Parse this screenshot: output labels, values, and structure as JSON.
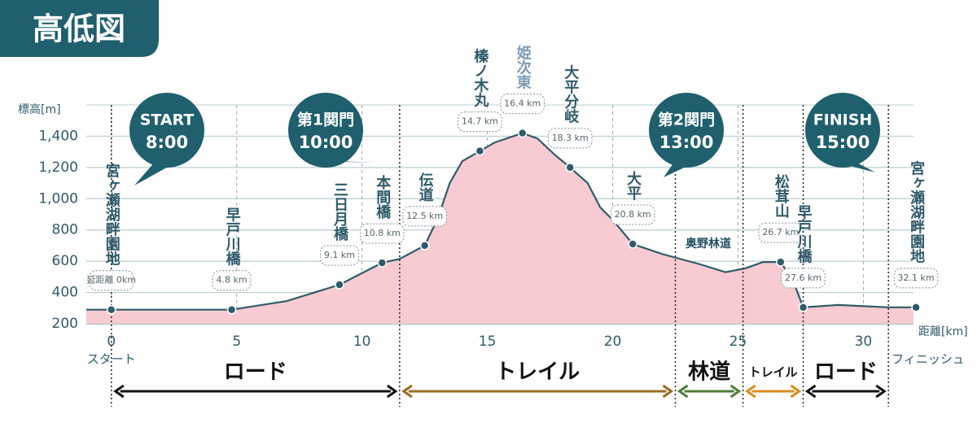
{
  "title": "高低図",
  "chart_data": {
    "type": "area",
    "y_label": "標高[m]",
    "x_label": "距離[km]",
    "x": [
      -1,
      0,
      4.8,
      7,
      9.1,
      10.8,
      11.5,
      12.5,
      13,
      13.5,
      14,
      14.7,
      15.3,
      16.4,
      17,
      17.7,
      18.3,
      19,
      19.5,
      20,
      20.8,
      22,
      23.5,
      24.5,
      25.3,
      26,
      26.7,
      27.2,
      27.6,
      29,
      31,
      32.1,
      32
    ],
    "values": [
      290,
      290,
      290,
      345,
      450,
      590,
      615,
      700,
      865,
      1100,
      1240,
      1305,
      1360,
      1420,
      1385,
      1280,
      1200,
      1100,
      945,
      865,
      710,
      645,
      580,
      530,
      555,
      595,
      595,
      475,
      305,
      320,
      305,
      305,
      305
    ],
    "color": "#f7cbd1",
    "line_color": "#2f5b6a",
    "xlim": [
      -1,
      32
    ],
    "ylim": [
      200,
      1600
    ],
    "xticks": [
      0,
      5,
      10,
      15,
      20,
      25,
      30
    ],
    "yticks": [
      200,
      400,
      600,
      800,
      {
        "value": 1000,
        "label": "1,000"
      },
      {
        "value": 1200,
        "label": "1,200"
      },
      {
        "value": 1400,
        "label": "1,400"
      }
    ],
    "grid": true,
    "stations": [
      {
        "name": "宮ヶ瀬湖畔園地",
        "distance_label": "延距離 0km",
        "x": 0,
        "elevation": 290,
        "color": "#2f5b6a"
      },
      {
        "name": "早戸川橋",
        "distance_label": "4.8 km",
        "x": 4.8,
        "elevation": 290,
        "color": "#2f5b6a"
      },
      {
        "name": "三日月橋",
        "distance_label": "9.1 km",
        "x": 9.1,
        "elevation": 450,
        "color": "#2f5b6a"
      },
      {
        "name": "本間橋",
        "distance_label": "10.8 km",
        "x": 10.8,
        "elevation": 590,
        "color": "#2f5b6a"
      },
      {
        "name": "伝道",
        "distance_label": "12.5 km",
        "x": 12.5,
        "elevation": 700,
        "color": "#2f5b6a"
      },
      {
        "name": "榛ノ木丸",
        "distance_label": "14.7 km",
        "x": 14.7,
        "elevation": 1305,
        "color": "#2f5b6a"
      },
      {
        "name": "姫次東",
        "distance_label": "16.4 km",
        "x": 16.4,
        "elevation": 1420,
        "color": "#7f9bb5"
      },
      {
        "name": "大平分岐",
        "distance_label": "18.3 km",
        "x": 18.3,
        "elevation": 1200,
        "color": "#2f5b6a"
      },
      {
        "name": "大平",
        "distance_label": "20.8 km",
        "x": 20.8,
        "elevation": 710,
        "color": "#2f5b6a"
      },
      {
        "name": "松茸山",
        "distance_label": "26.7 km",
        "x": 26.7,
        "elevation": 595,
        "color": "#2f5b6a"
      },
      {
        "name": "早戸川橋",
        "distance_label": "27.6 km",
        "x": 27.6,
        "elevation": 305,
        "color": "#2f5b6a"
      },
      {
        "name": "宮ヶ瀬湖畔園地",
        "distance_label": "32.1 km",
        "x": 32.1,
        "elevation": 305,
        "color": "#2f5b6a"
      }
    ],
    "callouts": [
      {
        "label": "START",
        "time": "8:00"
      },
      {
        "label": "第1関門",
        "time": "10:00"
      },
      {
        "label": "第2関門",
        "time": "13:00"
      },
      {
        "label": "FINISH",
        "time": "15:00"
      }
    ],
    "road_label": "奥野林道",
    "start_label": "スタート",
    "finish_label": "フィニッシュ",
    "sections": [
      {
        "name": "ロード",
        "start": 0,
        "end": 11.5,
        "color": "#111111"
      },
      {
        "name": "トレイル",
        "start": 11.5,
        "end": 22.5,
        "color": "#9b6b1e"
      },
      {
        "name": "林道",
        "start": 22.5,
        "end": 25.2,
        "color": "#4f7d3a"
      },
      {
        "name": "トレイル",
        "start": 25.2,
        "end": 27.6,
        "color": "#d98b1f"
      },
      {
        "name": "ロード",
        "start": 27.6,
        "end": 31,
        "color": "#111111"
      }
    ]
  }
}
